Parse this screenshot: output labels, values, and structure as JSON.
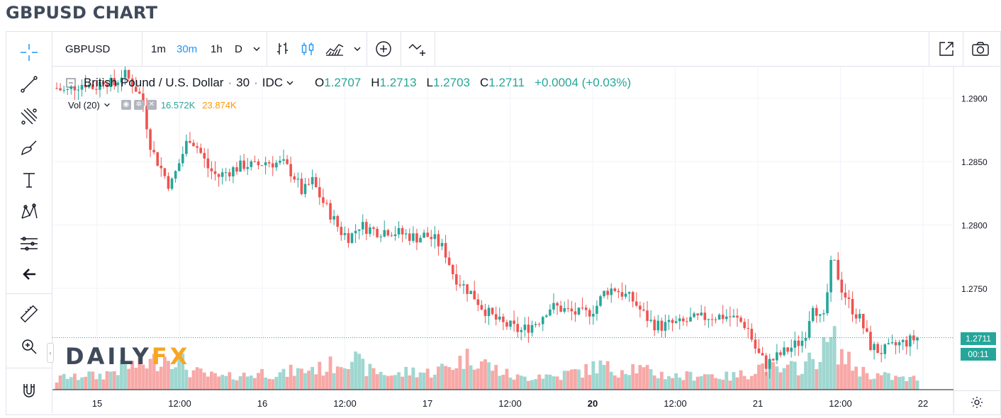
{
  "page_title": "GBPUSD CHART",
  "toolbar": {
    "symbol": "GBPUSD",
    "intervals": [
      "1m",
      "30m",
      "1h",
      "D"
    ],
    "active_interval": "30m",
    "icons": [
      "bar-chart-icon",
      "candles-icon",
      "area-chart-icon",
      "chevron-down-icon",
      "add-indicator-icon",
      "compare-icon"
    ],
    "right_icons": [
      "popout-icon",
      "camera-icon"
    ]
  },
  "left_tools": [
    "crosshair-icon",
    "trendline-icon",
    "fib-icon",
    "brush-icon",
    "text-icon",
    "pattern-icon",
    "forecast-icon",
    "back-arrow-icon",
    "ruler-icon",
    "zoom-in-icon",
    "magnet-icon"
  ],
  "legend": {
    "name": "British Pound / U.S. Dollar",
    "interval": "30",
    "exchange": "IDC",
    "o_label": "O",
    "o": "1.2707",
    "h_label": "H",
    "h": "1.2713",
    "l_label": "L",
    "l": "1.2703",
    "c_label": "C",
    "c": "1.2711",
    "change": "+0.0004 (+0.03%)"
  },
  "volume_legend": {
    "label": "Vol (20)",
    "v1": "16.572K",
    "v2": "23.874K"
  },
  "watermark": {
    "part1": "DAILY",
    "part2": "FX"
  },
  "price_tag": {
    "last": "1.2711",
    "countdown": "00:11"
  },
  "colors": {
    "up": "#26a69a",
    "down": "#ef5350",
    "vol_up": "#9fd7d0",
    "vol_down": "#f7a9a7",
    "accent": "#2196f3"
  },
  "chart_data": {
    "type": "candlestick",
    "title": "GBPUSD",
    "y_ticks": [
      "1.2900",
      "1.2850",
      "1.2800",
      "1.2750"
    ],
    "ylim": [
      1.267,
      1.2925
    ],
    "x_ticks": [
      "15",
      "12:00",
      "16",
      "12:00",
      "17",
      "12:00",
      "20",
      "12:00",
      "21",
      "12:00",
      "22"
    ],
    "x_tick_bold": [
      false,
      false,
      false,
      false,
      false,
      false,
      true,
      false,
      false,
      false,
      false
    ],
    "close_path": [
      1.2908,
      1.2905,
      1.291,
      1.2912,
      1.2908,
      1.2915,
      1.291,
      1.292,
      1.2912,
      1.29,
      1.286,
      1.2845,
      1.283,
      1.285,
      1.287,
      1.286,
      1.2845,
      1.2838,
      1.2842,
      1.2845,
      1.2848,
      1.2846,
      1.285,
      1.2849,
      1.2848,
      1.284,
      1.2825,
      1.2835,
      1.282,
      1.2808,
      1.2795,
      1.279,
      1.28,
      1.2797,
      1.2795,
      1.2796,
      1.2794,
      1.2792,
      1.279,
      1.2792,
      1.2788,
      1.278,
      1.276,
      1.2752,
      1.2745,
      1.2735,
      1.2728,
      1.2722,
      1.272,
      1.2716,
      1.272,
      1.2725,
      1.2735,
      1.2735,
      1.2732,
      1.273,
      1.273,
      1.2735,
      1.2748,
      1.275,
      1.2745,
      1.274,
      1.273,
      1.2722,
      1.272,
      1.2722,
      1.2722,
      1.2725,
      1.2726,
      1.2728,
      1.2728,
      1.2728,
      1.2725,
      1.272,
      1.27,
      1.269,
      1.2695,
      1.27,
      1.2705,
      1.271,
      1.274,
      1.272,
      1.2775,
      1.275,
      1.2735,
      1.2725,
      1.2705,
      1.27,
      1.2702,
      1.2706,
      1.2708,
      1.2711
    ],
    "volume_path": [
      14,
      22,
      18,
      26,
      20,
      24,
      30,
      35,
      38,
      40,
      42,
      50,
      55,
      48,
      30,
      26,
      22,
      20,
      18,
      24,
      22,
      25,
      28,
      26,
      24,
      30,
      28,
      35,
      32,
      38,
      45,
      55,
      40,
      30,
      28,
      25,
      22,
      28,
      30,
      26,
      30,
      34,
      40,
      48,
      52,
      44,
      35,
      28,
      22,
      18,
      20,
      24,
      22,
      20,
      26,
      28,
      30,
      38,
      35,
      30,
      34,
      36,
      30,
      26,
      24,
      22,
      20,
      22,
      25,
      24,
      22,
      20,
      22,
      26,
      34,
      40,
      30,
      28,
      36,
      38,
      48,
      60,
      80,
      55,
      40,
      30,
      25,
      22,
      20,
      18,
      16,
      18
    ],
    "last_price": 1.2711
  }
}
